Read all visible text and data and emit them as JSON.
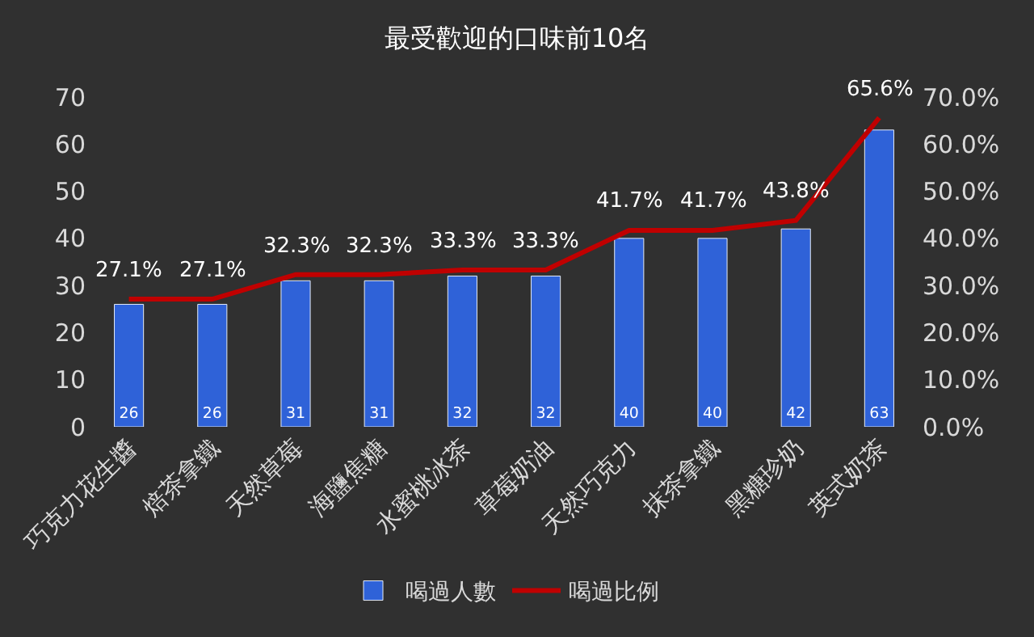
{
  "chart_data": {
    "type": "bar",
    "title": "最受歡迎的口味前10名",
    "categories": [
      "巧克力花生醬",
      "焙茶拿鐵",
      "天然草莓",
      "海鹽焦糖",
      "水蜜桃冰茶",
      "草莓奶油",
      "天然巧克力",
      "抹茶拿鐵",
      "黑糖珍奶",
      "英式奶茶"
    ],
    "series": [
      {
        "name": "喝過人數",
        "color": "#2f62d8",
        "values": [
          26,
          26,
          31,
          31,
          32,
          32,
          40,
          40,
          42,
          63
        ],
        "value_labels": [
          "26",
          "26",
          "31",
          "31",
          "32",
          "32",
          "40",
          "40",
          "42",
          "63"
        ]
      },
      {
        "name": "喝過比例",
        "type": "line",
        "axis": "y2",
        "color": "#c00000",
        "values": [
          27.1,
          27.1,
          32.3,
          32.3,
          33.3,
          33.3,
          41.7,
          41.7,
          43.8,
          65.6
        ],
        "value_labels": [
          "27.1%",
          "27.1%",
          "32.3%",
          "32.3%",
          "33.3%",
          "33.3%",
          "41.7%",
          "41.7%",
          "43.8%",
          "65.6%"
        ]
      }
    ],
    "ylim": [
      0,
      70
    ],
    "yticks": [
      0,
      10,
      20,
      30,
      40,
      50,
      60,
      70
    ],
    "y2lim": [
      0,
      70
    ],
    "y2ticks": [
      {
        "value": 0,
        "label": "0.0%"
      },
      {
        "value": 10,
        "label": "10.0%"
      },
      {
        "value": 20,
        "label": "20.0%"
      },
      {
        "value": 30,
        "label": "30.0%"
      },
      {
        "value": 40,
        "label": "40.0%"
      },
      {
        "value": 50,
        "label": "50.0%"
      },
      {
        "value": 60,
        "label": "60.0%"
      },
      {
        "value": 70,
        "label": "70.0%"
      }
    ],
    "grid": false,
    "legend": "bottom",
    "marker": "none",
    "line_style": "solid"
  }
}
